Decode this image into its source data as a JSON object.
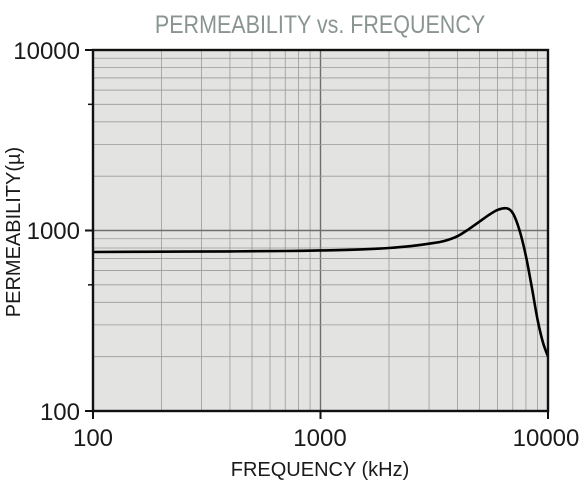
{
  "chart_data": {
    "type": "line",
    "title": "PERMEABILITY vs. FREQUENCY",
    "xlabel": "FREQUENCY (kHz)",
    "ylabel": "PERMEABILITY(µ)",
    "x_scale": "log",
    "y_scale": "log",
    "xlim": [
      100,
      10000
    ],
    "ylim": [
      100,
      10000
    ],
    "x_ticks": [
      "100",
      "1000",
      "10000"
    ],
    "y_ticks": [
      "100",
      "1000",
      "10000"
    ],
    "grid": true,
    "legend": "none",
    "series": [
      {
        "x": [
          100,
          200,
          400,
          700,
          1000,
          1500,
          2000,
          2500,
          3000,
          3500,
          4000,
          4500,
          5000,
          5500,
          6000,
          6500,
          7000,
          7500,
          8000,
          8500,
          9000,
          9500,
          10000
        ],
        "y": [
          760,
          763,
          766,
          770,
          775,
          785,
          800,
          820,
          845,
          875,
          930,
          1020,
          1120,
          1220,
          1300,
          1330,
          1250,
          1000,
          720,
          480,
          320,
          240,
          200
        ]
      }
    ],
    "colors": {
      "plot_background": "#e3e3e1",
      "line": "#000000",
      "grid": "#888888",
      "title": "#8a9590"
    }
  }
}
